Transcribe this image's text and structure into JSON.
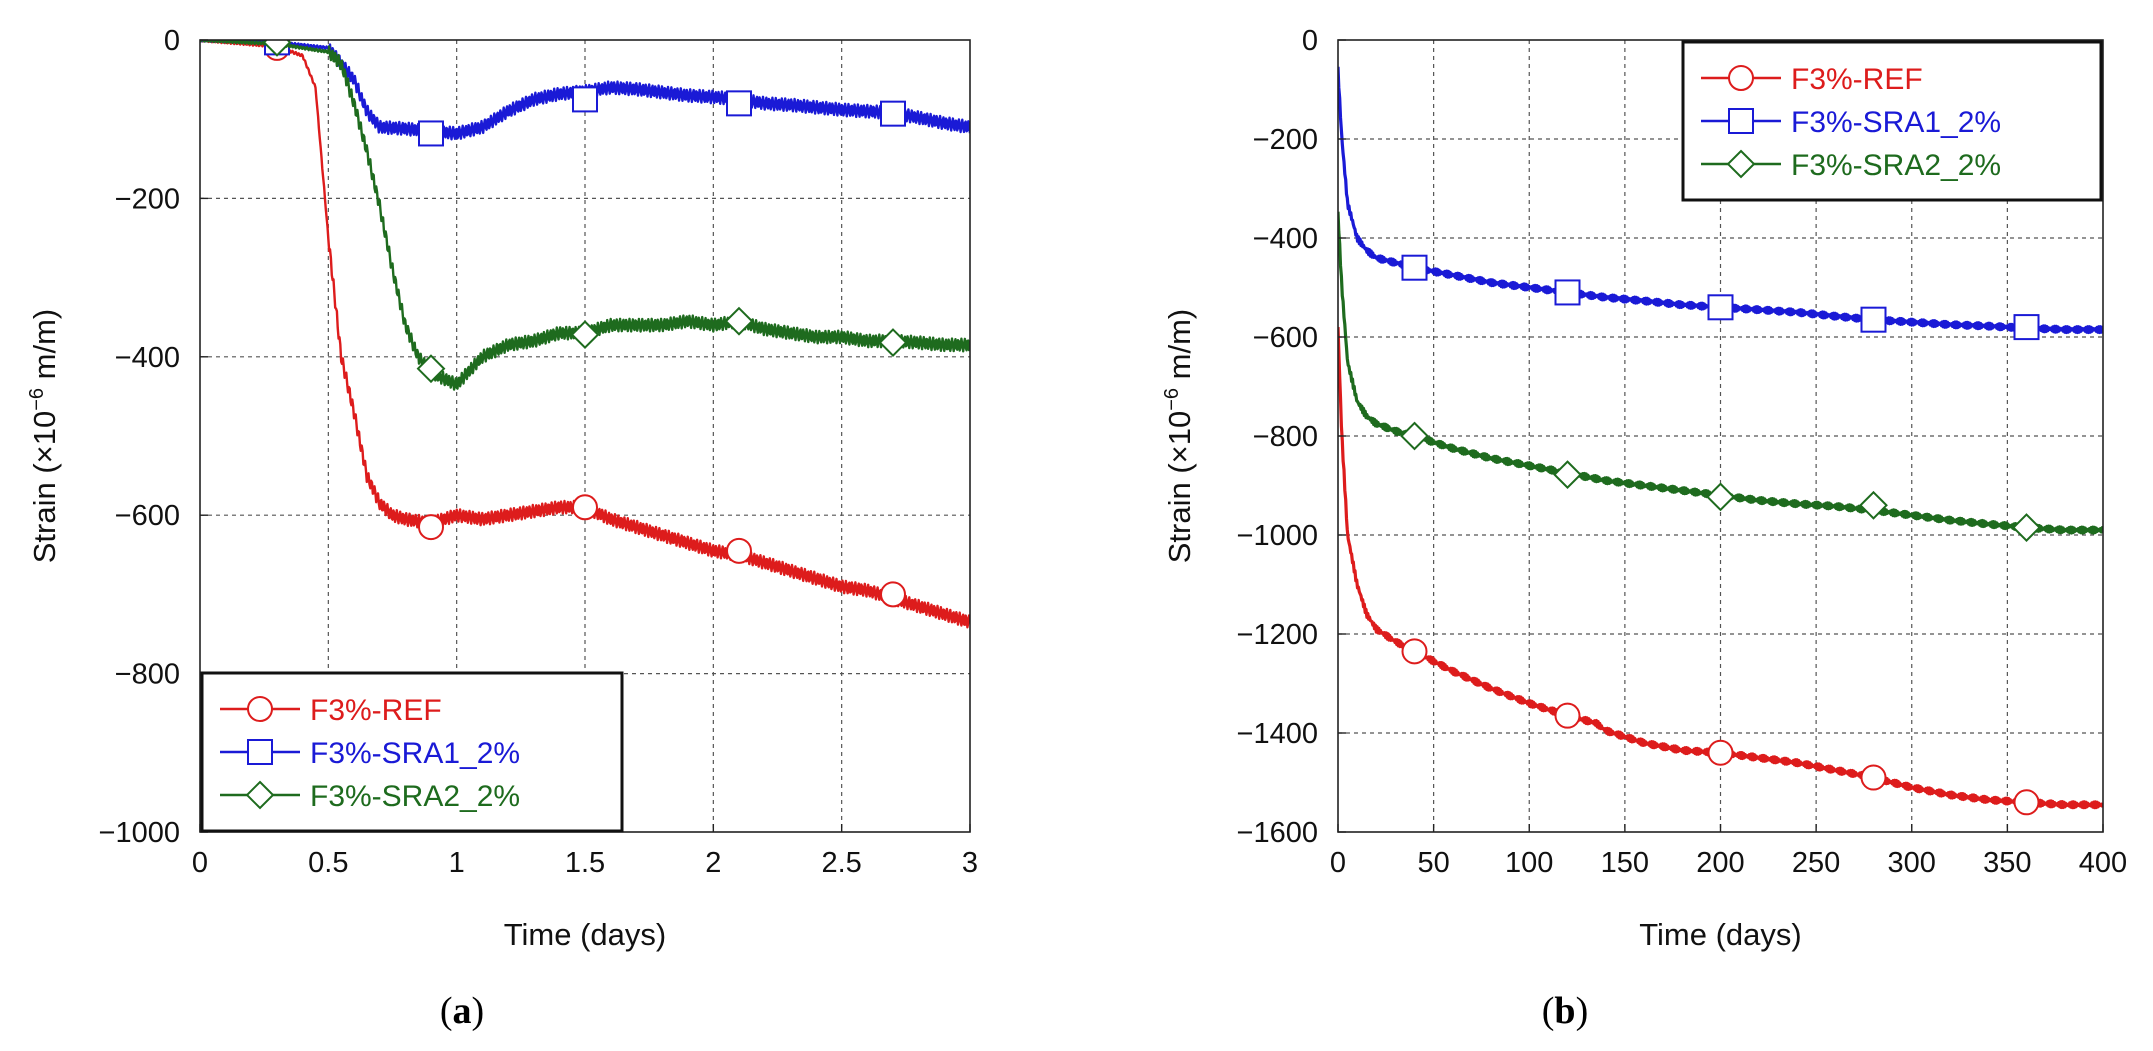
{
  "chart_data": [
    {
      "type": "line",
      "panel": "a",
      "caption": "a",
      "xlabel": "Time (days)",
      "ylabel": "Strain (×10",
      "ylabel_exp": "−6",
      "ylabel_unit": " m/m)",
      "xlim": [
        0,
        3
      ],
      "ylim": [
        -1000,
        0
      ],
      "xticks": [
        0,
        0.5,
        1,
        1.5,
        2,
        2.5,
        3
      ],
      "xtick_labels": [
        "0",
        "0.5",
        "1",
        "1.5",
        "2",
        "2.5",
        "3"
      ],
      "yticks": [
        0,
        -200,
        -400,
        -600,
        -800,
        -1000
      ],
      "ytick_labels": [
        "0",
        "−200",
        "−400",
        "−600",
        "−800",
        "−1000"
      ],
      "grid": true,
      "legend_position": "bottom-left",
      "series": [
        {
          "name": "F3%-REF",
          "color": "#dd1c1c",
          "marker": "circle",
          "x": [
            0,
            0.3,
            0.4,
            0.45,
            0.5,
            0.55,
            0.6,
            0.65,
            0.7,
            0.75,
            0.8,
            0.9,
            1.0,
            1.1,
            1.2,
            1.3,
            1.4,
            1.5,
            1.6,
            1.7,
            1.8,
            1.9,
            2.0,
            2.1,
            2.2,
            2.3,
            2.4,
            2.5,
            2.6,
            2.7,
            2.8,
            2.9,
            3.0
          ],
          "y": [
            0,
            -8,
            -20,
            -60,
            -250,
            -400,
            -470,
            -550,
            -585,
            -600,
            -605,
            -610,
            -600,
            -605,
            -600,
            -595,
            -590,
            -590,
            -605,
            -615,
            -625,
            -635,
            -645,
            -650,
            -660,
            -670,
            -680,
            -690,
            -695,
            -705,
            -715,
            -725,
            -735
          ],
          "markers_x": [
            0.3,
            0.9,
            1.5,
            2.1,
            2.7
          ],
          "markers_y": [
            -10,
            -615,
            -590,
            -645,
            -700
          ]
        },
        {
          "name": "F3%-SRA1_2%",
          "color": "#1a1ad6",
          "marker": "square",
          "x": [
            0,
            0.3,
            0.5,
            0.6,
            0.65,
            0.7,
            0.8,
            0.9,
            1.0,
            1.1,
            1.2,
            1.3,
            1.4,
            1.5,
            1.6,
            1.7,
            1.8,
            1.9,
            2.0,
            2.1,
            2.2,
            2.3,
            2.4,
            2.5,
            2.6,
            2.7,
            2.8,
            2.9,
            3.0
          ],
          "y": [
            0,
            -3,
            -10,
            -50,
            -90,
            -110,
            -112,
            -115,
            -118,
            -110,
            -90,
            -75,
            -68,
            -65,
            -60,
            -62,
            -66,
            -70,
            -72,
            -75,
            -80,
            -82,
            -85,
            -88,
            -90,
            -92,
            -98,
            -105,
            -110
          ],
          "markers_x": [
            0.3,
            0.9,
            1.5,
            2.1,
            2.7
          ],
          "markers_y": [
            -3,
            -118,
            -75,
            -80,
            -93
          ]
        },
        {
          "name": "F3%-SRA2_2%",
          "color": "#1e6b1e",
          "marker": "diamond",
          "x": [
            0,
            0.3,
            0.5,
            0.55,
            0.6,
            0.65,
            0.7,
            0.75,
            0.8,
            0.85,
            0.9,
            1.0,
            1.1,
            1.2,
            1.3,
            1.4,
            1.5,
            1.6,
            1.7,
            1.8,
            1.9,
            2.0,
            2.1,
            2.2,
            2.3,
            2.4,
            2.5,
            2.6,
            2.7,
            2.8,
            2.9,
            3.0
          ],
          "y": [
            0,
            -5,
            -15,
            -30,
            -80,
            -140,
            -210,
            -290,
            -360,
            -400,
            -420,
            -435,
            -400,
            -385,
            -380,
            -370,
            -370,
            -360,
            -360,
            -360,
            -355,
            -360,
            -355,
            -365,
            -370,
            -375,
            -375,
            -380,
            -380,
            -382,
            -385,
            -385
          ],
          "markers_x": [
            0.3,
            0.9,
            1.5,
            2.1,
            2.7
          ],
          "markers_y": [
            -3,
            -415,
            -372,
            -355,
            -382
          ]
        }
      ]
    },
    {
      "type": "line",
      "panel": "b",
      "caption": "b",
      "xlabel": "Time (days)",
      "ylabel": "Strain (×10",
      "ylabel_exp": "−6",
      "ylabel_unit": " m/m)",
      "xlim": [
        0,
        400
      ],
      "ylim": [
        -1600,
        0
      ],
      "xticks": [
        0,
        50,
        100,
        150,
        200,
        250,
        300,
        350,
        400
      ],
      "xtick_labels": [
        "0",
        "50",
        "100",
        "150",
        "200",
        "250",
        "300",
        "350",
        "400"
      ],
      "yticks": [
        0,
        -200,
        -400,
        -600,
        -800,
        -1000,
        -1200,
        -1400,
        -1600
      ],
      "ytick_labels": [
        "0",
        "−200",
        "−400",
        "−600",
        "−800",
        "−1000",
        "−1200",
        "−1400",
        "−1600"
      ],
      "grid": true,
      "legend_position": "top-right",
      "series": [
        {
          "name": "F3%-REF",
          "color": "#dd1c1c",
          "marker": "circle",
          "x": [
            0,
            2,
            5,
            10,
            15,
            20,
            30,
            40,
            60,
            80,
            100,
            120,
            135,
            140,
            160,
            180,
            200,
            220,
            240,
            260,
            280,
            300,
            320,
            340,
            360,
            380,
            400
          ],
          "y": [
            -580,
            -800,
            -1000,
            -1100,
            -1160,
            -1190,
            -1215,
            -1235,
            -1275,
            -1310,
            -1340,
            -1365,
            -1380,
            -1395,
            -1420,
            -1435,
            -1440,
            -1450,
            -1460,
            -1475,
            -1490,
            -1510,
            -1525,
            -1535,
            -1540,
            -1545,
            -1545
          ],
          "markers_x": [
            40,
            120,
            200,
            280,
            360
          ],
          "markers_y": [
            -1235,
            -1365,
            -1440,
            -1490,
            -1540
          ]
        },
        {
          "name": "F3%-SRA1_2%",
          "color": "#1a1ad6",
          "marker": "square",
          "x": [
            0,
            2,
            5,
            10,
            15,
            20,
            30,
            40,
            60,
            80,
            100,
            120,
            140,
            160,
            180,
            200,
            220,
            240,
            260,
            280,
            300,
            320,
            340,
            360,
            380,
            400
          ],
          "y": [
            -60,
            -200,
            -330,
            -400,
            -425,
            -440,
            -450,
            -460,
            -475,
            -490,
            -500,
            -510,
            -520,
            -527,
            -535,
            -540,
            -545,
            -550,
            -558,
            -565,
            -570,
            -575,
            -578,
            -582,
            -585,
            -585
          ],
          "markers_x": [
            40,
            120,
            200,
            280,
            360
          ],
          "markers_y": [
            -460,
            -510,
            -540,
            -565,
            -580
          ]
        },
        {
          "name": "F3%-SRA2_2%",
          "color": "#1e6b1e",
          "marker": "diamond",
          "x": [
            0,
            2,
            5,
            10,
            15,
            20,
            30,
            40,
            60,
            80,
            100,
            120,
            140,
            160,
            180,
            200,
            220,
            240,
            260,
            280,
            300,
            320,
            340,
            360,
            380,
            400
          ],
          "y": [
            -350,
            -500,
            -650,
            -730,
            -760,
            -775,
            -790,
            -800,
            -825,
            -845,
            -860,
            -875,
            -890,
            -900,
            -910,
            -920,
            -930,
            -937,
            -942,
            -950,
            -960,
            -970,
            -978,
            -985,
            -990,
            -990
          ],
          "markers_x": [
            40,
            120,
            200,
            280,
            360
          ],
          "markers_y": [
            -800,
            -878,
            -923,
            -940,
            -985
          ]
        }
      ]
    }
  ]
}
